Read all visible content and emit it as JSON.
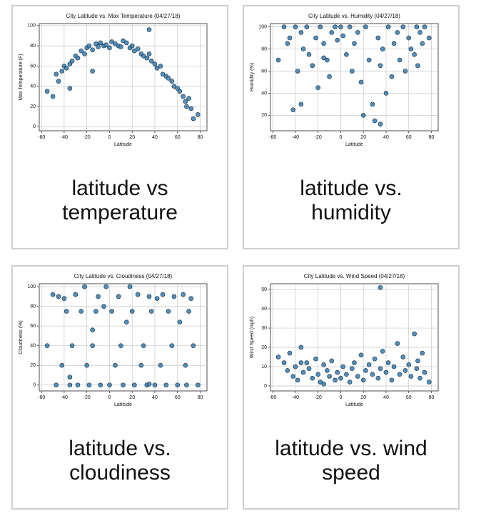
{
  "chart_data": [
    {
      "type": "scatter",
      "title": "City Latitude vs. Max Temperature (04/27/18)",
      "x_label": "Latitude",
      "y_label": "Max Temperature (F)",
      "x": [
        -55,
        -50,
        -47,
        -45,
        -42,
        -40,
        -38,
        -35,
        -33,
        -30,
        -28,
        -25,
        -22,
        -20,
        -18,
        -15,
        -12,
        -10,
        -8,
        -5,
        -3,
        0,
        2,
        5,
        8,
        10,
        12,
        15,
        18,
        20,
        22,
        25,
        28,
        30,
        33,
        35,
        37,
        40,
        42,
        45,
        47,
        50,
        52,
        55,
        57,
        60,
        62,
        65,
        67,
        68,
        70,
        72,
        74,
        78,
        -35,
        -15,
        35
      ],
      "values": [
        35,
        30,
        52,
        45,
        55,
        60,
        58,
        62,
        65,
        70,
        68,
        75,
        72,
        78,
        80,
        76,
        82,
        79,
        83,
        80,
        81,
        78,
        84,
        82,
        80,
        79,
        85,
        83,
        78,
        80,
        75,
        77,
        72,
        70,
        68,
        72,
        65,
        62,
        58,
        60,
        52,
        50,
        48,
        45,
        40,
        38,
        35,
        30,
        25,
        20,
        28,
        18,
        8,
        12,
        38,
        55,
        96
      ],
      "color": "#3d84b8",
      "edge_color": "#1c2a36",
      "xlim": [
        -62,
        86
      ],
      "ylim": [
        -4,
        102
      ],
      "xticks": [
        -60,
        -40,
        -20,
        0,
        20,
        40,
        60,
        80
      ],
      "yticks": [
        0,
        20,
        40,
        60,
        80,
        100
      ],
      "grid": true
    },
    {
      "type": "scatter",
      "title": "City Latitude vs. Humidity (04/27/18)",
      "x_label": "Latitude",
      "y_label": "Humidity (%)",
      "x": [
        -55,
        -50,
        -47,
        -45,
        -42,
        -40,
        -38,
        -35,
        -33,
        -30,
        -28,
        -25,
        -22,
        -20,
        -18,
        -15,
        -12,
        -10,
        -8,
        -5,
        -3,
        0,
        2,
        5,
        8,
        10,
        12,
        15,
        18,
        20,
        22,
        25,
        28,
        30,
        33,
        35,
        37,
        40,
        42,
        45,
        47,
        50,
        52,
        55,
        57,
        60,
        62,
        65,
        67,
        68,
        70,
        72,
        74,
        78,
        -35,
        -15,
        35
      ],
      "values": [
        70,
        100,
        85,
        90,
        25,
        100,
        60,
        95,
        80,
        100,
        75,
        65,
        90,
        45,
        100,
        85,
        70,
        55,
        95,
        100,
        88,
        100,
        92,
        75,
        100,
        60,
        85,
        95,
        50,
        20,
        100,
        70,
        30,
        15,
        90,
        65,
        80,
        40,
        100,
        55,
        85,
        95,
        70,
        100,
        60,
        90,
        80,
        75,
        100,
        65,
        95,
        85,
        100,
        90,
        30,
        72,
        12
      ],
      "color": "#3d84b8",
      "edge_color": "#1c2a36",
      "xlim": [
        -62,
        86
      ],
      "ylim": [
        6,
        103
      ],
      "xticks": [
        -60,
        -40,
        -20,
        0,
        20,
        40,
        60,
        80
      ],
      "yticks": [
        20,
        40,
        60,
        80,
        100
      ],
      "grid": true
    },
    {
      "type": "scatter",
      "title": "City Latitude vs. Cloudiness (04/27/18)",
      "x_label": "Latitude",
      "y_label": "Cloudiness (%)",
      "x": [
        -55,
        -50,
        -47,
        -45,
        -42,
        -40,
        -38,
        -35,
        -33,
        -30,
        -28,
        -25,
        -22,
        -20,
        -18,
        -15,
        -12,
        -10,
        -8,
        -5,
        -3,
        0,
        2,
        5,
        8,
        10,
        12,
        15,
        18,
        20,
        22,
        25,
        28,
        30,
        33,
        35,
        37,
        40,
        42,
        45,
        47,
        50,
        52,
        55,
        57,
        60,
        62,
        65,
        67,
        68,
        70,
        72,
        74,
        78,
        -35,
        -15,
        35
      ],
      "values": [
        40,
        92,
        0,
        90,
        20,
        88,
        75,
        0,
        40,
        92,
        0,
        75,
        100,
        20,
        0,
        40,
        75,
        90,
        0,
        80,
        100,
        0,
        75,
        20,
        90,
        40,
        0,
        64,
        100,
        75,
        0,
        92,
        20,
        40,
        0,
        90,
        75,
        0,
        88,
        20,
        92,
        0,
        75,
        40,
        90,
        0,
        64,
        92,
        20,
        0,
        75,
        88,
        40,
        0,
        8,
        56,
        1
      ],
      "color": "#3d84b8",
      "edge_color": "#1c2a36",
      "xlim": [
        -62,
        86
      ],
      "ylim": [
        -6,
        103
      ],
      "xticks": [
        -60,
        -40,
        -20,
        0,
        20,
        40,
        60,
        80
      ],
      "yticks": [
        0,
        20,
        40,
        60,
        80,
        100
      ],
      "grid": true
    },
    {
      "type": "scatter",
      "title": "City Latitude vs. Wind Speed (04/27/18)",
      "x_label": "Latitude",
      "y_label": "Wind Speed (mph)",
      "x": [
        -55,
        -50,
        -47,
        -45,
        -42,
        -40,
        -38,
        -35,
        -33,
        -30,
        -28,
        -25,
        -22,
        -20,
        -18,
        -15,
        -12,
        -10,
        -8,
        -5,
        -3,
        0,
        2,
        5,
        8,
        10,
        12,
        15,
        18,
        20,
        22,
        25,
        28,
        30,
        33,
        35,
        37,
        40,
        42,
        45,
        47,
        50,
        52,
        55,
        57,
        60,
        62,
        65,
        67,
        68,
        70,
        72,
        74,
        78,
        -35,
        -15,
        35
      ],
      "values": [
        15,
        12,
        8,
        17,
        5,
        10,
        3,
        20,
        7,
        12,
        9,
        4,
        14,
        6,
        2,
        11,
        8,
        5,
        13,
        3,
        7,
        4,
        10,
        6,
        2,
        9,
        12,
        5,
        16,
        3,
        8,
        11,
        6,
        14,
        4,
        9,
        18,
        7,
        12,
        3,
        10,
        22,
        6,
        15,
        8,
        11,
        5,
        27,
        9,
        13,
        4,
        17,
        7,
        2,
        12,
        1,
        51
      ],
      "color": "#3d84b8",
      "edge_color": "#1c2a36",
      "xlim": [
        -62,
        86
      ],
      "ylim": [
        -2.6,
        53
      ],
      "xticks": [
        -60,
        -40,
        -20,
        0,
        20,
        40,
        60,
        80
      ],
      "yticks": [
        0,
        10,
        20,
        30,
        40,
        50
      ],
      "grid": true
    }
  ],
  "captions": [
    [
      "latitude vs",
      "temperature"
    ],
    [
      "latitude vs.",
      "humidity"
    ],
    [
      "latitude vs.",
      "cloudiness"
    ],
    [
      "latitude vs. wind",
      "speed"
    ]
  ]
}
